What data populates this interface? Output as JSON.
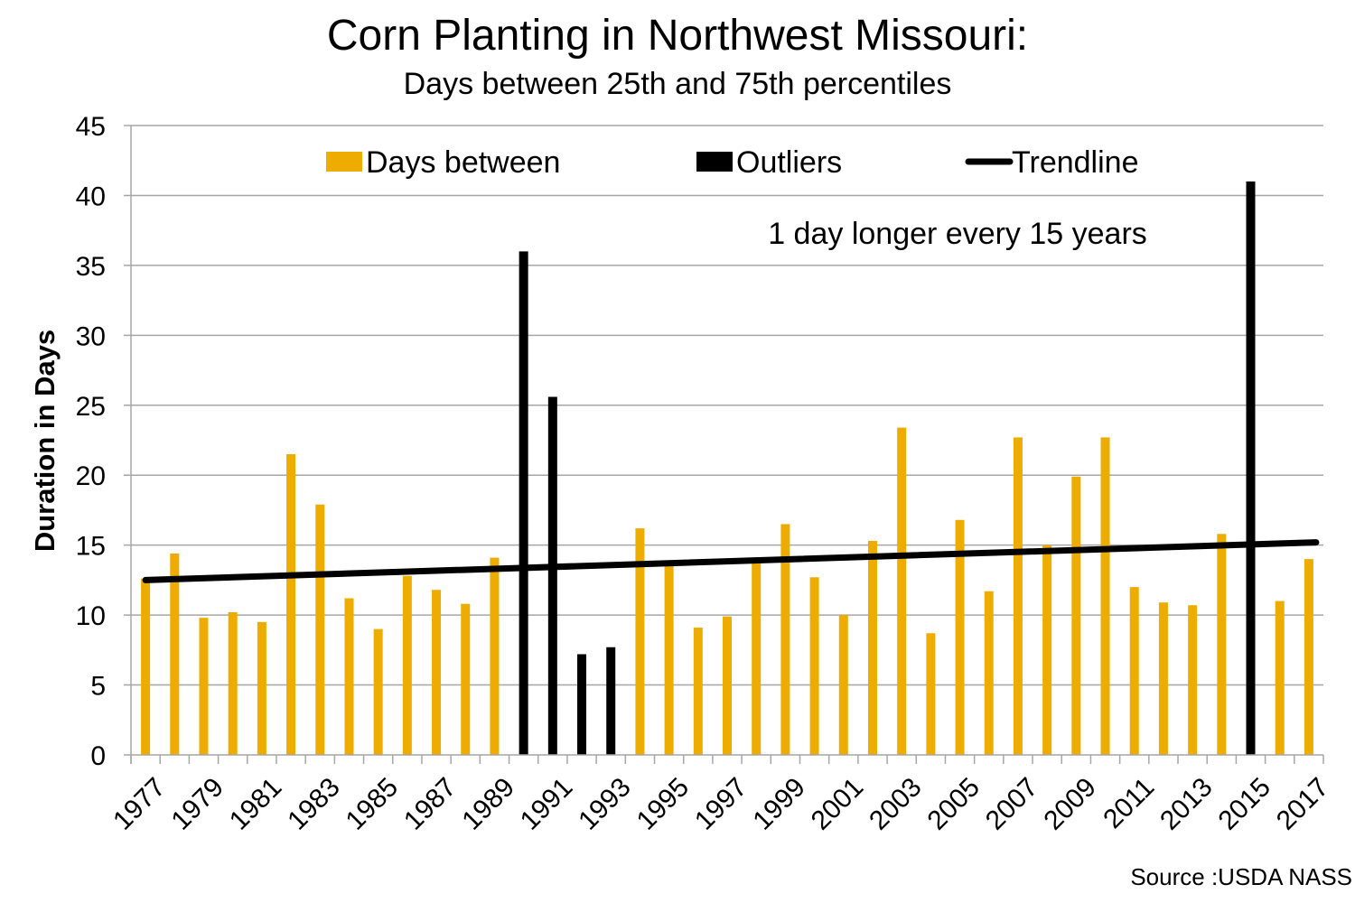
{
  "chart_data": {
    "type": "bar",
    "title": "Corn Planting in Northwest Missouri:",
    "subtitle": "Days between 25th and 75th percentiles",
    "xlabel": "",
    "ylabel": "Duration in Days",
    "ylim": [
      0,
      45
    ],
    "yticks": [
      0,
      5,
      10,
      15,
      20,
      25,
      30,
      35,
      40,
      45
    ],
    "grid": true,
    "legend_placement": "top",
    "legend": [
      {
        "label": "Days between",
        "color": "#EFAC00",
        "kind": "bar"
      },
      {
        "label": "Outliers",
        "color": "#000000",
        "kind": "bar"
      },
      {
        "label": "Trendline",
        "color": "#000000",
        "kind": "line"
      }
    ],
    "categories": [
      "1977",
      "1978",
      "1979",
      "1980",
      "1981",
      "1982",
      "1983",
      "1984",
      "1985",
      "1986",
      "1987",
      "1988",
      "1989",
      "1990",
      "1991",
      "1992",
      "1993",
      "1994",
      "1995",
      "1996",
      "1997",
      "1998",
      "1999",
      "2000",
      "2001",
      "2002",
      "2003",
      "2004",
      "2005",
      "2006",
      "2007",
      "2008",
      "2009",
      "2010",
      "2011",
      "2012",
      "2013",
      "2014",
      "2015",
      "2016",
      "2017"
    ],
    "x_tick_labels": [
      "1977",
      "1979",
      "1981",
      "1983",
      "1985",
      "1987",
      "1989",
      "1991",
      "1993",
      "1995",
      "1997",
      "1999",
      "2001",
      "2003",
      "2005",
      "2007",
      "2009",
      "2011",
      "2013",
      "2015",
      "2017"
    ],
    "series": [
      {
        "name": "Days between",
        "color": "#EFAC00",
        "values": [
          12.6,
          14.4,
          9.8,
          10.2,
          9.5,
          21.5,
          17.9,
          11.2,
          9.0,
          12.8,
          11.8,
          10.8,
          14.1,
          null,
          null,
          null,
          null,
          16.2,
          13.5,
          9.1,
          9.9,
          13.8,
          16.5,
          12.7,
          10.0,
          15.3,
          23.4,
          8.7,
          16.8,
          11.7,
          22.7,
          15.0,
          19.9,
          22.7,
          12.0,
          10.9,
          10.7,
          15.8,
          null,
          11.0,
          14.0
        ]
      },
      {
        "name": "Outliers",
        "color": "#000000",
        "values": [
          null,
          null,
          null,
          null,
          null,
          null,
          null,
          null,
          null,
          null,
          null,
          null,
          null,
          36.0,
          25.6,
          7.2,
          7.7,
          null,
          null,
          null,
          null,
          null,
          null,
          null,
          null,
          null,
          null,
          null,
          null,
          null,
          null,
          null,
          null,
          null,
          null,
          null,
          null,
          null,
          41.0,
          null,
          null
        ]
      }
    ],
    "trendline": {
      "name": "Trendline",
      "color": "#000000",
      "start": {
        "x": "1977",
        "y": 12.5
      },
      "end": {
        "x": "2017",
        "y": 15.2
      }
    },
    "annotations": [
      "1 day longer every 15 years"
    ],
    "source": "Source :USDA NASS"
  }
}
